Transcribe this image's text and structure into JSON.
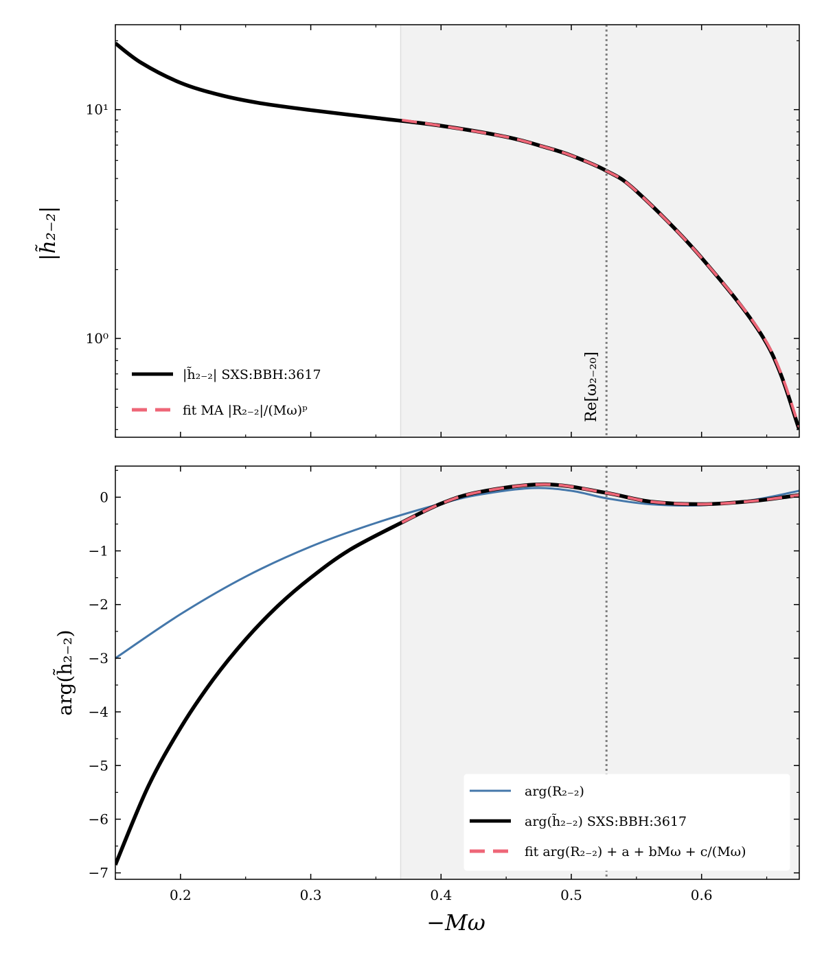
{
  "chart_data": [
    {
      "type": "line",
      "panel": "top",
      "ylabel": "|h̃₂₋₂|",
      "yscale": "log",
      "xlim": [
        0.15,
        0.675
      ],
      "ylim": [
        0.37,
        23.5
      ],
      "yticks": [
        {
          "value": 1,
          "label": "10⁰"
        },
        {
          "value": 10,
          "label": "10¹"
        }
      ],
      "grid": false,
      "shaded_region": [
        0.369,
        0.675
      ],
      "vline": {
        "x": 0.527,
        "label": "Re[ω₂₋₂₀]"
      },
      "legend_position": "lower-left",
      "series": [
        {
          "name": "|h̃₂₋₂| SXS:BBH:3617",
          "color": "#000000",
          "style": "solid",
          "x": [
            0.15,
            0.17,
            0.2,
            0.23,
            0.26,
            0.3,
            0.35,
            0.4,
            0.45,
            0.48,
            0.5,
            0.527,
            0.55,
            0.6,
            0.65,
            0.675
          ],
          "y": [
            19.5,
            16.0,
            13.1,
            11.6,
            10.7,
            9.95,
            9.2,
            8.5,
            7.6,
            6.85,
            6.3,
            5.4,
            4.4,
            2.25,
            0.95,
            0.4
          ]
        },
        {
          "name": "fit MA |R₂₋₂|/(Mω)ᵖ",
          "color": "#ee6677",
          "style": "dashed",
          "x": [
            0.37,
            0.4,
            0.45,
            0.48,
            0.5,
            0.527,
            0.55,
            0.6,
            0.65,
            0.675
          ],
          "y": [
            9.0,
            8.5,
            7.6,
            6.85,
            6.3,
            5.4,
            4.4,
            2.25,
            0.96,
            0.41
          ]
        }
      ]
    },
    {
      "type": "line",
      "panel": "bottom",
      "xlabel": "−Mω",
      "ylabel": "arg(h̃₂₋₂)",
      "xlim": [
        0.15,
        0.675
      ],
      "ylim": [
        -7.12,
        0.58
      ],
      "xticks": [
        0.2,
        0.3,
        0.4,
        0.5,
        0.6
      ],
      "xtick_labels": [
        "0.2",
        "0.3",
        "0.4",
        "0.5",
        "0.6"
      ],
      "yticks": [
        0,
        -1,
        -2,
        -3,
        -4,
        -5,
        -6,
        -7
      ],
      "ytick_labels": [
        "0",
        "−1",
        "−2",
        "−3",
        "−4",
        "−5",
        "−6",
        "−7"
      ],
      "grid": false,
      "shaded_region": [
        0.369,
        0.675
      ],
      "vline": {
        "x": 0.527
      },
      "legend_position": "lower-right",
      "series": [
        {
          "name": "arg(R₂₋₂)",
          "color": "#4477aa",
          "style": "solid",
          "x": [
            0.15,
            0.2,
            0.25,
            0.3,
            0.35,
            0.4,
            0.43,
            0.47,
            0.5,
            0.527,
            0.56,
            0.6,
            0.64,
            0.675
          ],
          "y": [
            -3.0,
            -2.18,
            -1.48,
            -0.92,
            -0.48,
            -0.12,
            0.05,
            0.17,
            0.12,
            -0.02,
            -0.13,
            -0.15,
            -0.05,
            0.12
          ]
        },
        {
          "name": "arg(h̃₂₋₂) SXS:BBH:3617",
          "color": "#000000",
          "style": "solid",
          "x": [
            0.15,
            0.175,
            0.2,
            0.225,
            0.25,
            0.275,
            0.3,
            0.33,
            0.37,
            0.4,
            0.43,
            0.48,
            0.527,
            0.56,
            0.6,
            0.64,
            0.675
          ],
          "y": [
            -6.85,
            -5.4,
            -4.3,
            -3.4,
            -2.65,
            -2.02,
            -1.5,
            -0.98,
            -0.47,
            -0.12,
            0.1,
            0.24,
            0.08,
            -0.08,
            -0.13,
            -0.07,
            0.04
          ]
        },
        {
          "name": "fit arg(R₂₋₂) + a + bMω + c/(Mω)",
          "color": "#ee6677",
          "style": "dashed",
          "x": [
            0.37,
            0.4,
            0.43,
            0.48,
            0.527,
            0.56,
            0.6,
            0.64,
            0.675
          ],
          "y": [
            -0.47,
            -0.12,
            0.1,
            0.24,
            0.08,
            -0.08,
            -0.13,
            -0.07,
            0.04
          ]
        }
      ]
    }
  ]
}
